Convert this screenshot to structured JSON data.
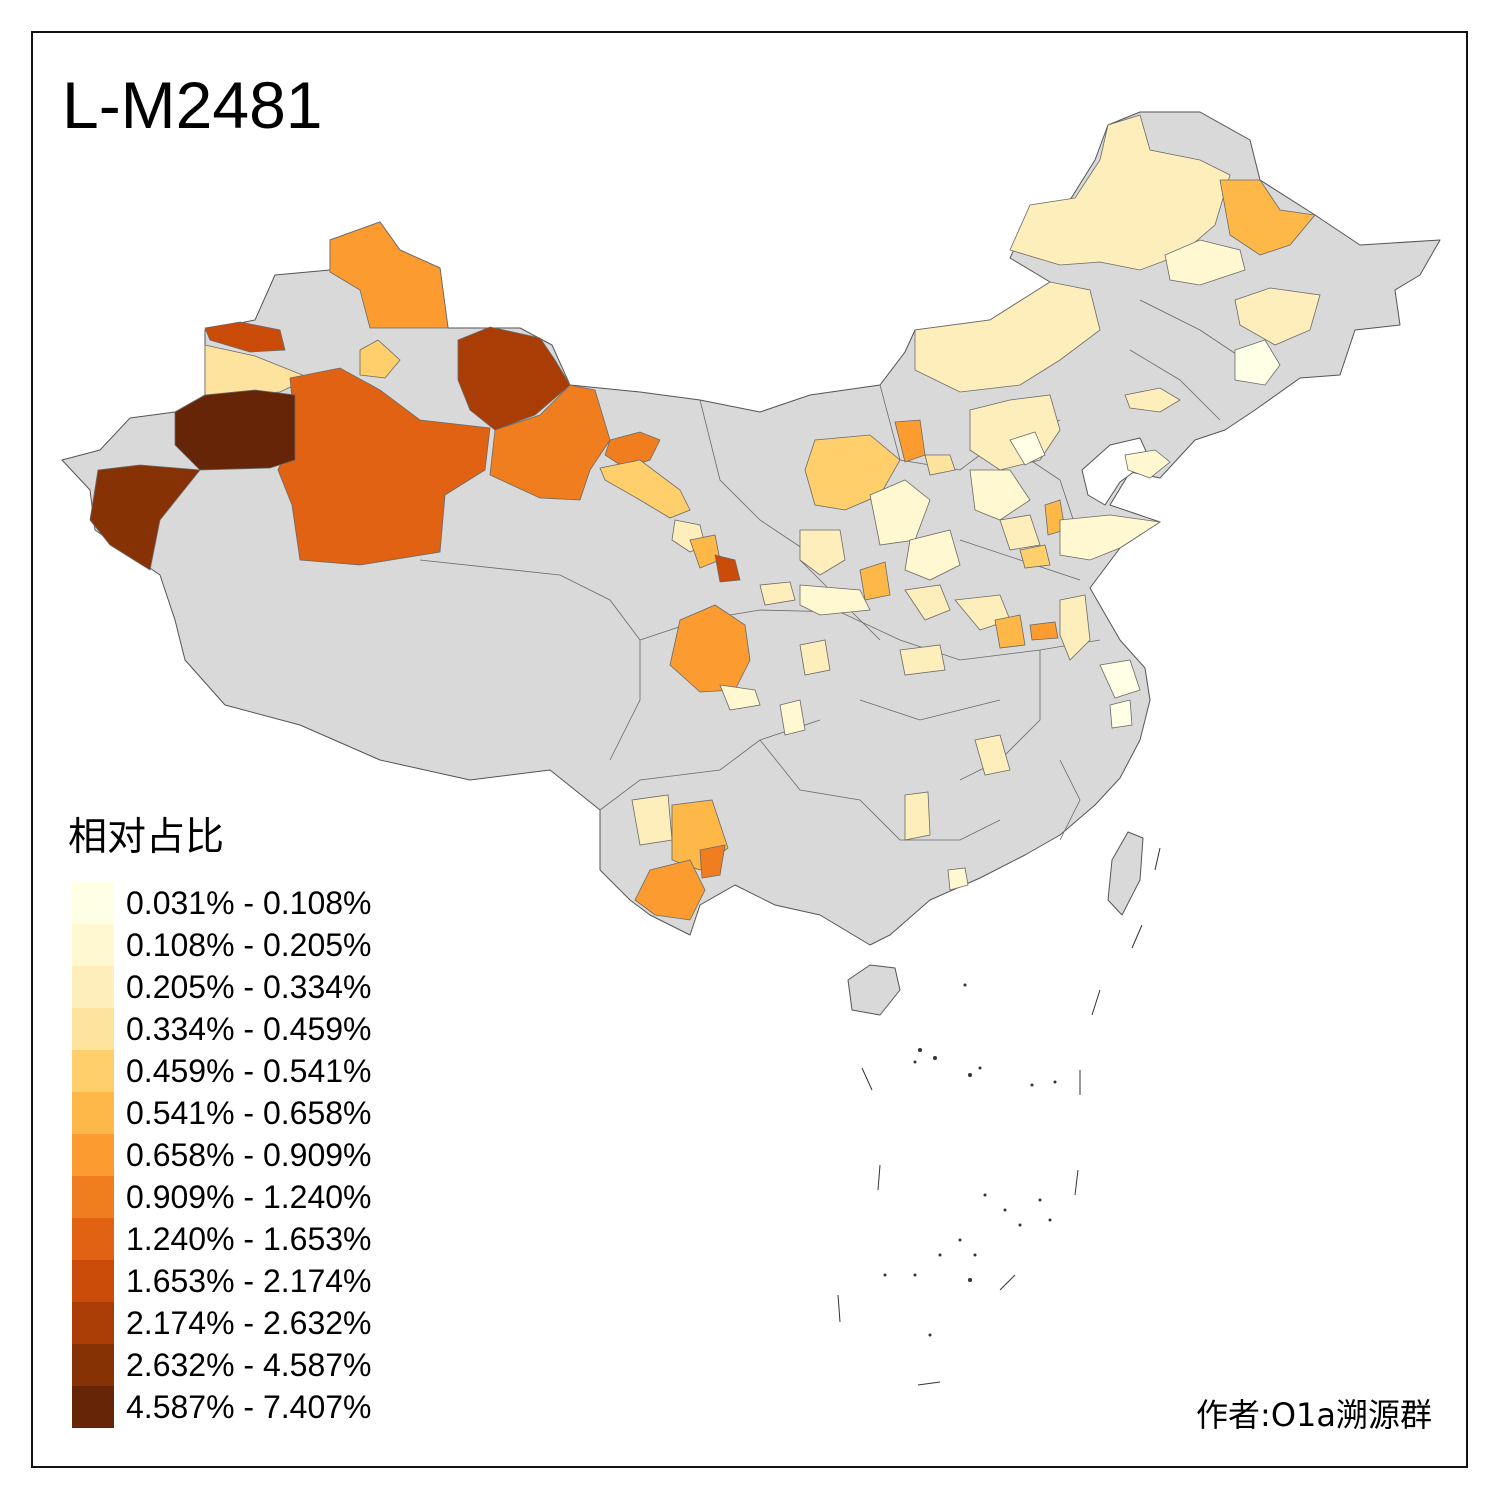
{
  "title": "L-M2481",
  "legend": {
    "title": "相对占比",
    "items": [
      {
        "label": "0.031% - 0.108%",
        "color": "#FFFFE5"
      },
      {
        "label": "0.108% - 0.205%",
        "color": "#FFF8D0"
      },
      {
        "label": "0.205% - 0.334%",
        "color": "#FEEEBB"
      },
      {
        "label": "0.334% - 0.459%",
        "color": "#FEE39E"
      },
      {
        "label": "0.459% - 0.541%",
        "color": "#FECF6A"
      },
      {
        "label": "0.541% - 0.658%",
        "color": "#FDB848"
      },
      {
        "label": "0.658% - 0.909%",
        "color": "#FB9B30"
      },
      {
        "label": "0.909% - 1.240%",
        "color": "#F07D1E"
      },
      {
        "label": "1.240% - 1.653%",
        "color": "#E06212"
      },
      {
        "label": "1.653% - 2.174%",
        "color": "#C94B07"
      },
      {
        "label": "2.174% - 2.632%",
        "color": "#A93D05"
      },
      {
        "label": "2.632% - 4.587%",
        "color": "#873205"
      },
      {
        "label": "4.587% - 7.407%",
        "color": "#662506"
      }
    ]
  },
  "no_data_color": "#D9D9D9",
  "credit": "作者:O1a溯源群"
}
